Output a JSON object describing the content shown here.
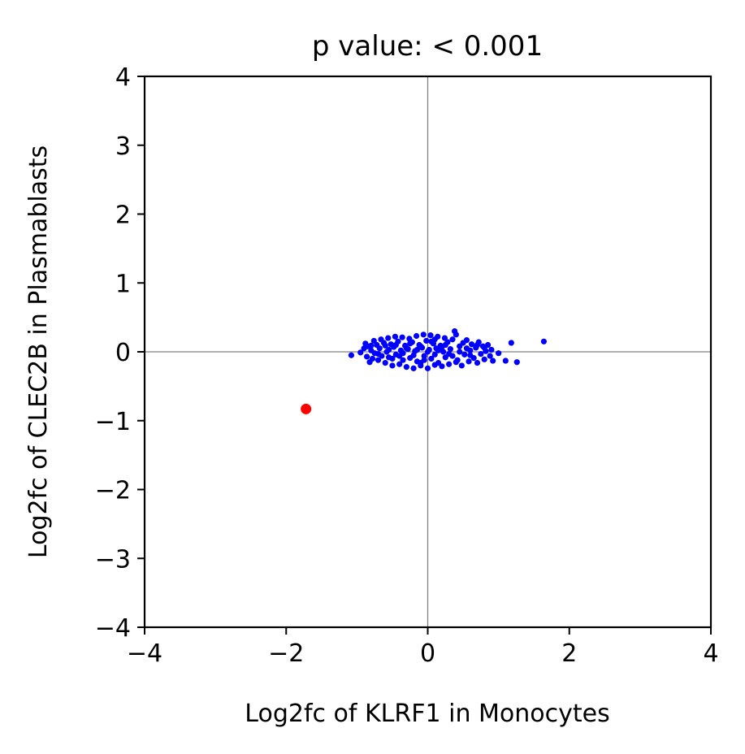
{
  "chart_data": {
    "type": "scatter",
    "title": "p value: < 0.001",
    "xlabel": "Log2fc of KLRF1 in Monocytes",
    "ylabel": "Log2fc of CLEC2B in Plasmablasts",
    "xlim": [
      -4,
      4
    ],
    "ylim": [
      -4,
      4
    ],
    "xticks": [
      -4,
      -2,
      0,
      2,
      4
    ],
    "yticks": [
      -4,
      -3,
      -2,
      -1,
      0,
      1,
      2,
      3,
      4
    ],
    "xtick_labels": [
      "−4",
      "−2",
      "0",
      "2",
      "4"
    ],
    "ytick_labels": [
      "−4",
      "−3",
      "−2",
      "−1",
      "0",
      "1",
      "2",
      "3",
      "4"
    ],
    "reference_lines": {
      "x": 0,
      "y": 0,
      "color": "#808080"
    },
    "grid": false,
    "series": [
      {
        "color": "#0000ff",
        "points": [
          [
            -1.08,
            -0.05
          ],
          [
            -0.95,
            -0.01
          ],
          [
            -0.9,
            0.05
          ],
          [
            -0.88,
            0.12
          ],
          [
            -0.86,
            -0.07
          ],
          [
            -0.85,
            0.08
          ],
          [
            -0.82,
            -0.15
          ],
          [
            -0.8,
            0.02
          ],
          [
            -0.78,
            -0.1
          ],
          [
            -0.76,
            0.16
          ],
          [
            -0.75,
            -0.02
          ],
          [
            -0.72,
            0.1
          ],
          [
            -0.7,
            -0.12
          ],
          [
            -0.68,
            0.05
          ],
          [
            -0.66,
            0.18
          ],
          [
            -0.65,
            -0.06
          ],
          [
            -0.62,
            0.13
          ],
          [
            -0.6,
            -0.16
          ],
          [
            -0.58,
            0.0
          ],
          [
            -0.56,
            0.2
          ],
          [
            -0.55,
            -0.08
          ],
          [
            -0.52,
            0.11
          ],
          [
            -0.5,
            -0.2
          ],
          [
            -0.48,
            0.07
          ],
          [
            -0.46,
            0.22
          ],
          [
            -0.45,
            -0.04
          ],
          [
            -0.42,
            0.15
          ],
          [
            -0.4,
            -0.18
          ],
          [
            -0.38,
            0.02
          ],
          [
            -0.36,
            0.21
          ],
          [
            -0.35,
            -0.12
          ],
          [
            -0.32,
            0.09
          ],
          [
            -0.3,
            -0.22
          ],
          [
            -0.28,
            0.04
          ],
          [
            -0.26,
            0.19
          ],
          [
            -0.25,
            -0.09
          ],
          [
            -0.22,
            0.14
          ],
          [
            -0.2,
            -0.24
          ],
          [
            -0.18,
            0.01
          ],
          [
            -0.16,
            0.23
          ],
          [
            -0.15,
            -0.14
          ],
          [
            -0.12,
            0.1
          ],
          [
            -0.1,
            -0.2
          ],
          [
            -0.08,
            0.06
          ],
          [
            -0.06,
            0.25
          ],
          [
            -0.05,
            -0.06
          ],
          [
            -0.02,
            0.16
          ],
          [
            0.0,
            -0.24
          ],
          [
            0.02,
            0.03
          ],
          [
            0.04,
            0.24
          ],
          [
            0.05,
            -0.1
          ],
          [
            0.08,
            0.12
          ],
          [
            0.1,
            -0.19
          ],
          [
            0.12,
            0.05
          ],
          [
            0.14,
            0.22
          ],
          [
            0.15,
            -0.16
          ],
          [
            0.18,
            0.09
          ],
          [
            0.2,
            -0.21
          ],
          [
            0.22,
            0.0
          ],
          [
            0.24,
            0.2
          ],
          [
            0.25,
            -0.08
          ],
          [
            0.28,
            0.14
          ],
          [
            0.3,
            -0.18
          ],
          [
            0.32,
            0.04
          ],
          [
            0.35,
            0.18
          ],
          [
            0.38,
            0.3
          ],
          [
            0.4,
            0.25
          ],
          [
            0.42,
            -0.12
          ],
          [
            0.45,
            0.08
          ],
          [
            0.48,
            -0.2
          ],
          [
            0.5,
            0.13
          ],
          [
            0.52,
            -0.04
          ],
          [
            0.55,
            0.17
          ],
          [
            0.58,
            -0.14
          ],
          [
            0.6,
            0.02
          ],
          [
            0.62,
            0.11
          ],
          [
            0.65,
            -0.09
          ],
          [
            0.68,
            0.06
          ],
          [
            0.7,
            -0.16
          ],
          [
            0.72,
            0.14
          ],
          [
            0.75,
            -0.03
          ],
          [
            0.78,
            0.08
          ],
          [
            0.8,
            -0.11
          ],
          [
            0.82,
            0.01
          ],
          [
            0.85,
            0.1
          ],
          [
            0.88,
            -0.06
          ],
          [
            0.9,
            0.03
          ],
          [
            0.92,
            -0.13
          ],
          [
            1.0,
            -0.02
          ],
          [
            1.1,
            -0.13
          ],
          [
            1.18,
            0.13
          ],
          [
            1.26,
            -0.15
          ],
          [
            1.64,
            0.15
          ],
          [
            -0.3,
            0.05
          ],
          [
            -0.2,
            -0.05
          ],
          [
            -0.1,
            0.08
          ],
          [
            0.0,
            0.0
          ],
          [
            0.1,
            -0.04
          ],
          [
            0.2,
            0.07
          ],
          [
            -0.4,
            -0.06
          ],
          [
            0.3,
            -0.03
          ],
          [
            -0.15,
            0.03
          ],
          [
            0.15,
            0.02
          ],
          [
            -0.05,
            -0.12
          ],
          [
            0.05,
            0.15
          ],
          [
            -0.25,
            0.12
          ],
          [
            0.25,
            0.1
          ],
          [
            -0.35,
            -0.02
          ],
          [
            0.35,
            -0.06
          ],
          [
            -0.45,
            0.1
          ],
          [
            0.45,
            0.0
          ],
          [
            -0.55,
            0.03
          ],
          [
            0.55,
            0.05
          ],
          [
            -0.6,
            0.09
          ],
          [
            0.6,
            -0.05
          ],
          [
            -0.7,
            -0.03
          ],
          [
            0.7,
            0.1
          ],
          [
            -0.8,
            0.09
          ],
          [
            0.8,
            0.06
          ],
          [
            -0.5,
            -0.1
          ],
          [
            0.4,
            -0.15
          ],
          [
            -0.1,
            -0.16
          ],
          [
            0.1,
            0.18
          ]
        ]
      },
      {
        "color": "#ff0000",
        "points": [
          [
            -1.72,
            -0.83
          ]
        ]
      }
    ]
  }
}
